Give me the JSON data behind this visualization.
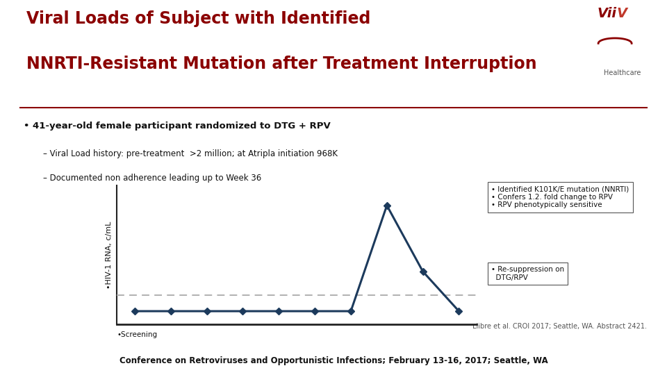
{
  "title_line1": "Viral Loads of Subject with Identified",
  "title_line2": "NNRTI-Resistant Mutation after Treatment Interruption",
  "title_color": "#8B0000",
  "bullet1": "• 41-year-old female participant randomized to DTG + RPV",
  "dash1": "– Viral Load history: pre-treatment  >2 million; at Atripla initiation 968K",
  "dash2": "– Documented non adherence leading up to Week 36",
  "ylabel": "•HIV-1 RNA, c/mL",
  "xlabel_screening": "•Screening",
  "line_color": "#1C3A5C",
  "dashed_line_color": "#AAAAAA",
  "background_color": "#FFFFFF",
  "footer_bg": "#C8C8C8",
  "footer_text": "Conference on Retroviruses and Opportunistic Infections; February 13-16, 2017; Seattle, WA",
  "citation": "Llibre et al. CROI 2017; Seattle, WA. Abstract 2421.",
  "annotation1_lines": [
    "• Identified K101K/E mutation (NNRTI)",
    "• Confers 1.2. fold change to RPV",
    "• RPV phenotypically sensitive"
  ],
  "annotation2_lines": [
    "• Re-suppression on",
    "  DTG/RPV"
  ],
  "x_data": [
    0,
    1,
    2,
    3,
    4,
    5,
    6,
    7,
    8,
    9
  ],
  "y_data": [
    1,
    1,
    1,
    1,
    1,
    1,
    1,
    9,
    4,
    1
  ],
  "dashed_line_y": 2.2,
  "separator_color": "#8B0000",
  "viiv_color": "#8B0000"
}
